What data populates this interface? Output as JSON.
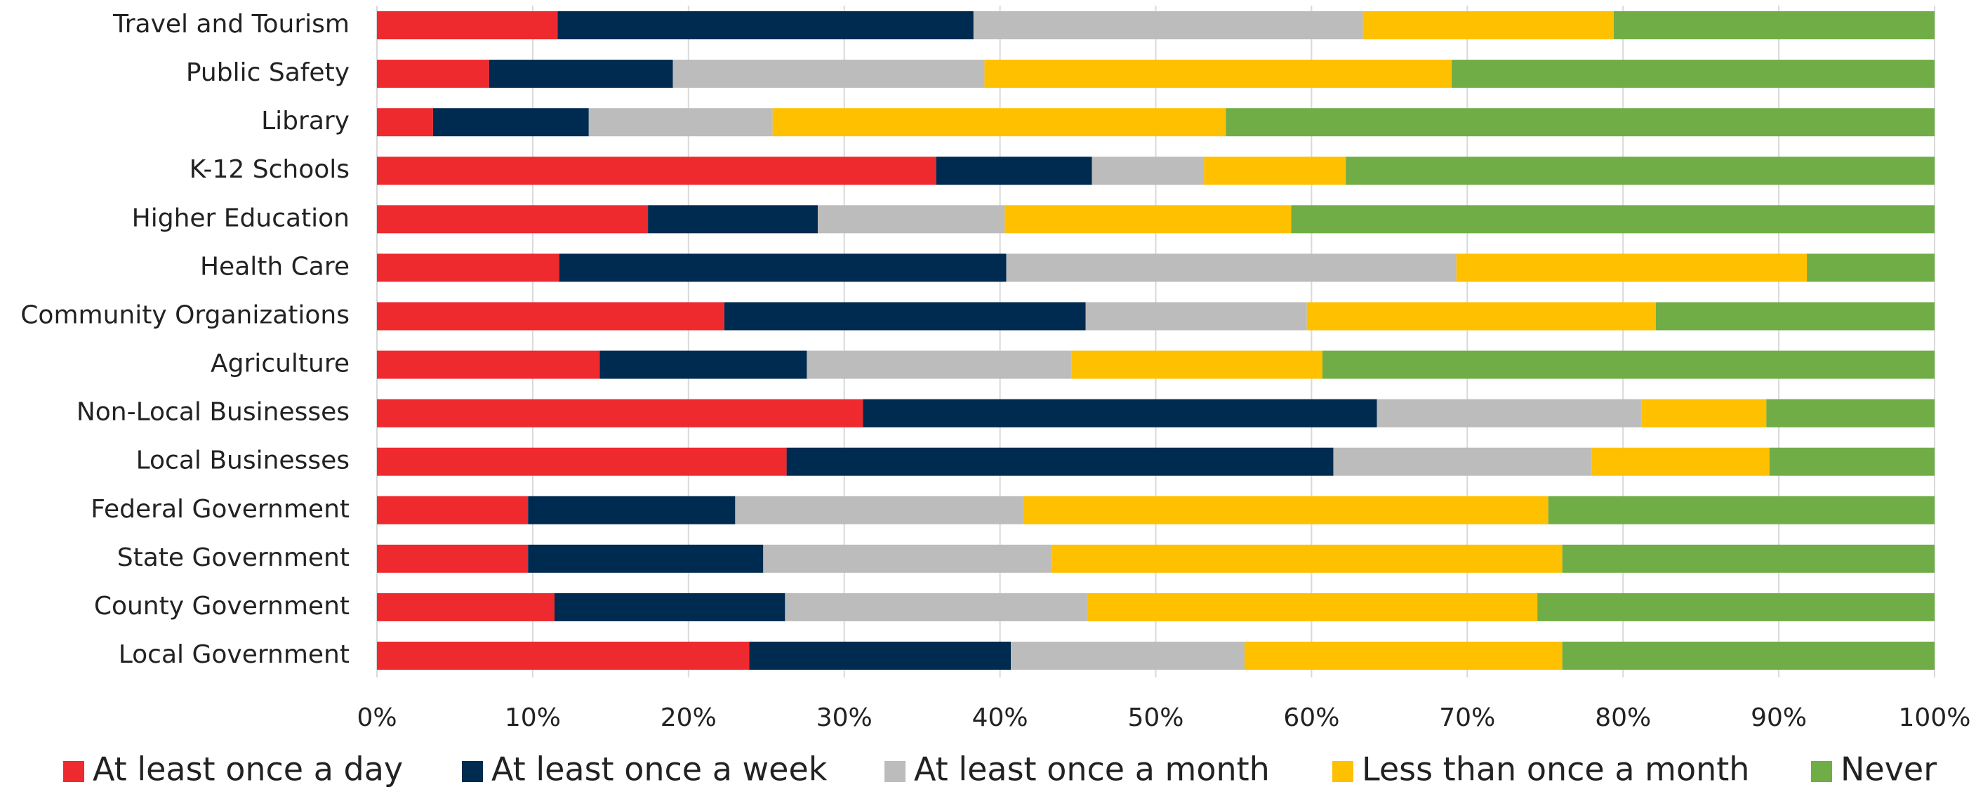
{
  "chart_data": {
    "type": "stacked_barh",
    "categories": [
      "Travel and Tourism",
      "Public Safety",
      "Library",
      "K-12 Schools",
      "Higher Education",
      "Health Care",
      "Community Organizations",
      "Agriculture",
      "Non-Local Businesses",
      "Local Businesses",
      "Federal Government",
      "State Government",
      "County Government",
      "Local Government"
    ],
    "series": [
      {
        "name": "At least once a day",
        "color": "#ee2a2f",
        "values": [
          11.6,
          7.2,
          3.6,
          35.9,
          17.4,
          11.7,
          22.3,
          14.3,
          31.2,
          26.3,
          9.7,
          9.7,
          11.4,
          23.9
        ]
      },
      {
        "name": "At least once a week",
        "color": "#002b50",
        "values": [
          26.7,
          11.8,
          10.0,
          10.0,
          10.9,
          28.7,
          23.2,
          13.3,
          33.0,
          35.1,
          13.3,
          15.1,
          14.8,
          16.8
        ]
      },
      {
        "name": "At least once a month",
        "color": "#bdbcbc",
        "values": [
          25.0,
          20.0,
          11.8,
          7.2,
          12.0,
          28.9,
          14.2,
          17.0,
          17.0,
          16.6,
          18.5,
          18.5,
          19.4,
          15.0
        ]
      },
      {
        "name": "Less than once a month",
        "color": "#ffc000",
        "values": [
          16.1,
          30.0,
          29.1,
          9.1,
          18.4,
          22.5,
          22.4,
          16.1,
          8.0,
          11.4,
          33.7,
          32.8,
          28.9,
          20.4
        ]
      },
      {
        "name": "Never",
        "color": "#70ad47",
        "values": [
          20.6,
          31.0,
          45.5,
          37.8,
          41.3,
          8.2,
          17.9,
          39.3,
          10.8,
          10.6,
          24.8,
          23.9,
          25.5,
          23.9
        ]
      }
    ],
    "xlim": [
      0,
      100
    ],
    "xticks": [
      {
        "value": 0,
        "label": "0%"
      },
      {
        "value": 10,
        "label": "10%"
      },
      {
        "value": 20,
        "label": "20%"
      },
      {
        "value": 30,
        "label": "30%"
      },
      {
        "value": 40,
        "label": "40%"
      },
      {
        "value": 50,
        "label": "50%"
      },
      {
        "value": 60,
        "label": "60%"
      },
      {
        "value": 70,
        "label": "70%"
      },
      {
        "value": 80,
        "label": "80%"
      },
      {
        "value": 90,
        "label": "90%"
      },
      {
        "value": 100,
        "label": "100%"
      }
    ],
    "grid": true,
    "legend": "bottom"
  }
}
